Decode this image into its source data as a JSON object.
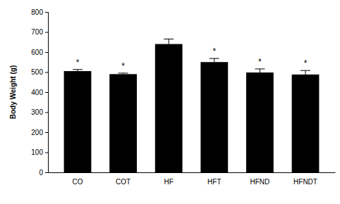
{
  "chart_data": {
    "type": "bar",
    "y_label": "Body Weight (g)",
    "categories": [
      "CO",
      "COT",
      "HF",
      "HFT",
      "HFND",
      "HFNDT"
    ],
    "values": [
      505,
      490,
      640,
      550,
      498,
      488
    ],
    "errors": [
      8,
      5,
      25,
      18,
      18,
      20
    ],
    "annotations": [
      "*",
      "*",
      null,
      "*",
      "*",
      "*"
    ],
    "color": "#000000",
    "ylim": [
      0,
      800
    ],
    "yticks": [
      0,
      100,
      200,
      300,
      400,
      500,
      600,
      700,
      800
    ],
    "grid": false
  }
}
